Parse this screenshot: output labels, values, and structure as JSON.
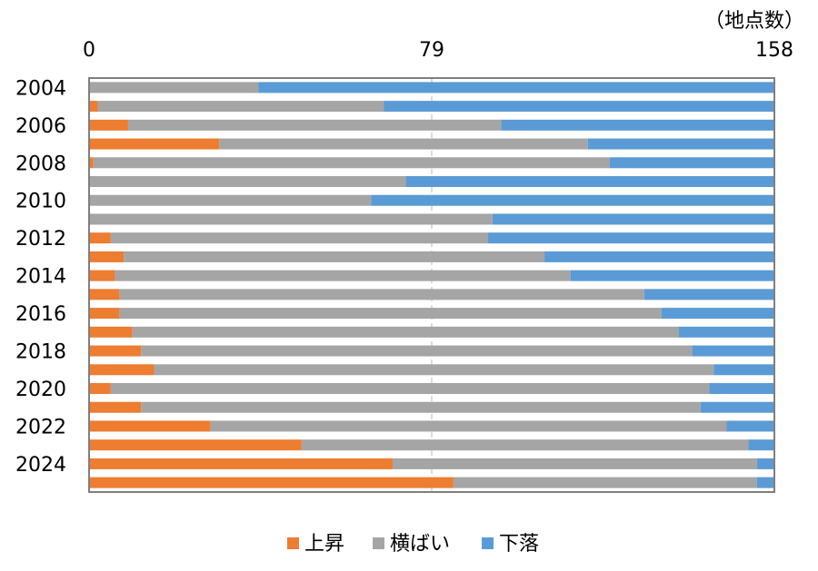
{
  "chart_data": {
    "type": "bar",
    "orientation": "horizontal",
    "stacked": true,
    "title": "",
    "unit_label": "（地点数）",
    "xlim": [
      0,
      158
    ],
    "x_ticks": [
      "0",
      "79",
      "158"
    ],
    "categories": [
      "2004",
      "2005",
      "2006",
      "2007",
      "2008",
      "2009",
      "2010",
      "2011",
      "2012",
      "2013",
      "2014",
      "2015",
      "2016",
      "2017",
      "2018",
      "2019",
      "2020",
      "2021",
      "2022",
      "2023",
      "2024",
      "2025"
    ],
    "y_tick_labels": [
      "2004",
      "2006",
      "2008",
      "2010",
      "2012",
      "2014",
      "2016",
      "2018",
      "2020",
      "2022",
      "2024"
    ],
    "series": [
      {
        "name": "上昇",
        "color": "#ED7D31",
        "values": [
          0,
          2,
          9,
          30,
          1,
          0,
          0,
          0,
          5,
          8,
          6,
          7,
          7,
          10,
          12,
          15,
          5,
          12,
          28,
          49,
          70,
          84
        ]
      },
      {
        "name": "横ばい",
        "color": "#A5A5A5",
        "values": [
          39,
          66,
          86,
          85,
          119,
          73,
          65,
          93,
          87,
          97,
          105,
          121,
          125,
          126,
          127,
          129,
          138,
          129,
          119,
          103,
          84,
          70
        ]
      },
      {
        "name": "下落",
        "color": "#5B9BD5",
        "values": [
          119,
          90,
          63,
          43,
          38,
          85,
          93,
          65,
          66,
          53,
          47,
          30,
          26,
          22,
          19,
          14,
          15,
          17,
          11,
          6,
          4,
          4
        ]
      }
    ],
    "grid": "dashed vertical at midpoint",
    "legend_position": "bottom"
  }
}
